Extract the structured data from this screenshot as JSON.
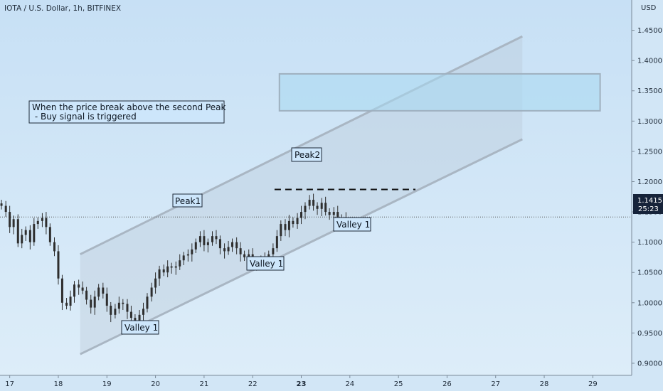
{
  "header": {
    "symbol_title": "IOTA / U.S. Dollar, 1h, BITFINEX",
    "currency": "USD"
  },
  "price_tag": {
    "price": "1.1415",
    "countdown": "25:23"
  },
  "annotations": {
    "note_line1": "When the price break above the second Peak",
    "note_line2": " - Buy signal is triggered",
    "peak1": "Peak1",
    "peak2": "Peak2",
    "valley_left": "Valley 1",
    "valley_mid": "Valley 1",
    "valley_right": "Valley 1"
  },
  "colors": {
    "up_candle": "#2e2e2e",
    "down_candle": "#2e2e2e",
    "channel_line": "#a9b6c3",
    "target_box": "#a8d8f0",
    "background_top": "#c7e0f5",
    "background_bottom": "#ddedf9"
  },
  "chart_data": {
    "type": "candlestick",
    "x_unit": "day of month",
    "x_ticks": [
      17,
      18,
      19,
      20,
      21,
      22,
      23,
      24,
      25,
      26,
      27,
      28,
      29
    ],
    "x_tick_labels": [
      "17",
      "18",
      "19",
      "20",
      "21",
      "22",
      "23",
      "24",
      "25",
      "26",
      "27",
      "28",
      "29"
    ],
    "bold_x_tick": "23",
    "y_ticks": [
      0.9,
      0.95,
      1.0,
      1.05,
      1.1,
      1.15,
      1.2,
      1.25,
      1.3,
      1.35,
      1.4,
      1.45
    ],
    "y_tick_labels": [
      "0.9000",
      "0.9500",
      "1.0000",
      "1.0500",
      "1.1000",
      "1.1500",
      "1.2000",
      "1.2500",
      "1.3000",
      "1.3500",
      "1.4000",
      "1.4500"
    ],
    "ylim": [
      0.88,
      1.5
    ],
    "xlim": [
      16.8,
      29.8
    ],
    "current_price": 1.1415,
    "closes": [
      [
        16.83,
        1.16
      ],
      [
        16.92,
        1.15
      ],
      [
        17.0,
        1.125
      ],
      [
        17.08,
        1.138
      ],
      [
        17.17,
        1.098
      ],
      [
        17.25,
        1.112
      ],
      [
        17.33,
        1.12
      ],
      [
        17.42,
        1.1
      ],
      [
        17.5,
        1.13
      ],
      [
        17.58,
        1.135
      ],
      [
        17.67,
        1.14
      ],
      [
        17.75,
        1.125
      ],
      [
        17.83,
        1.1
      ],
      [
        17.92,
        1.085
      ],
      [
        18.0,
        1.04
      ],
      [
        18.08,
        1.0
      ],
      [
        18.17,
        0.995
      ],
      [
        18.25,
        1.01
      ],
      [
        18.33,
        1.03
      ],
      [
        18.42,
        1.025
      ],
      [
        18.5,
        1.02
      ],
      [
        18.58,
        1.005
      ],
      [
        18.67,
        0.992
      ],
      [
        18.75,
        1.01
      ],
      [
        18.83,
        1.025
      ],
      [
        18.92,
        1.015
      ],
      [
        19.0,
        0.995
      ],
      [
        19.08,
        0.98
      ],
      [
        19.17,
        0.99
      ],
      [
        19.25,
        1.0
      ],
      [
        19.33,
        0.998
      ],
      [
        19.42,
        0.985
      ],
      [
        19.5,
        0.975
      ],
      [
        19.58,
        0.965
      ],
      [
        19.67,
        0.98
      ],
      [
        19.75,
        0.99
      ],
      [
        19.83,
        1.01
      ],
      [
        19.92,
        1.025
      ],
      [
        20.0,
        1.04
      ],
      [
        20.08,
        1.055
      ],
      [
        20.17,
        1.05
      ],
      [
        20.25,
        1.06
      ],
      [
        20.33,
        1.058
      ],
      [
        20.42,
        1.06
      ],
      [
        20.5,
        1.07
      ],
      [
        20.58,
        1.078
      ],
      [
        20.67,
        1.08
      ],
      [
        20.75,
        1.088
      ],
      [
        20.83,
        1.1
      ],
      [
        20.92,
        1.11
      ],
      [
        21.0,
        1.095
      ],
      [
        21.08,
        1.1
      ],
      [
        21.17,
        1.11
      ],
      [
        21.25,
        1.105
      ],
      [
        21.33,
        1.09
      ],
      [
        21.42,
        1.085
      ],
      [
        21.5,
        1.092
      ],
      [
        21.58,
        1.1
      ],
      [
        21.67,
        1.09
      ],
      [
        21.75,
        1.08
      ],
      [
        21.83,
        1.075
      ],
      [
        21.92,
        1.08
      ],
      [
        22.0,
        1.07
      ],
      [
        22.08,
        1.065
      ],
      [
        22.17,
        1.07
      ],
      [
        22.25,
        1.073
      ],
      [
        22.33,
        1.08
      ],
      [
        22.42,
        1.09
      ],
      [
        22.5,
        1.11
      ],
      [
        22.58,
        1.13
      ],
      [
        22.67,
        1.12
      ],
      [
        22.75,
        1.135
      ],
      [
        22.83,
        1.13
      ],
      [
        22.92,
        1.14
      ],
      [
        23.0,
        1.15
      ],
      [
        23.08,
        1.16
      ],
      [
        23.17,
        1.17
      ],
      [
        23.25,
        1.16
      ],
      [
        23.33,
        1.155
      ],
      [
        23.42,
        1.165
      ],
      [
        23.5,
        1.15
      ],
      [
        23.58,
        1.145
      ],
      [
        23.67,
        1.15
      ],
      [
        23.75,
        1.14
      ],
      [
        23.83,
        1.138
      ],
      [
        23.92,
        1.1415
      ]
    ],
    "channel": {
      "upper": [
        [
          18.45,
          1.08
        ],
        [
          27.55,
          1.44
        ]
      ],
      "lower": [
        [
          18.45,
          0.915
        ],
        [
          27.55,
          1.27
        ]
      ]
    },
    "target_zone": {
      "x": [
        22.55,
        29.15
      ],
      "y": [
        1.317,
        1.378
      ]
    },
    "peak2_level": {
      "x": [
        22.45,
        25.35
      ],
      "y": 1.187
    }
  }
}
